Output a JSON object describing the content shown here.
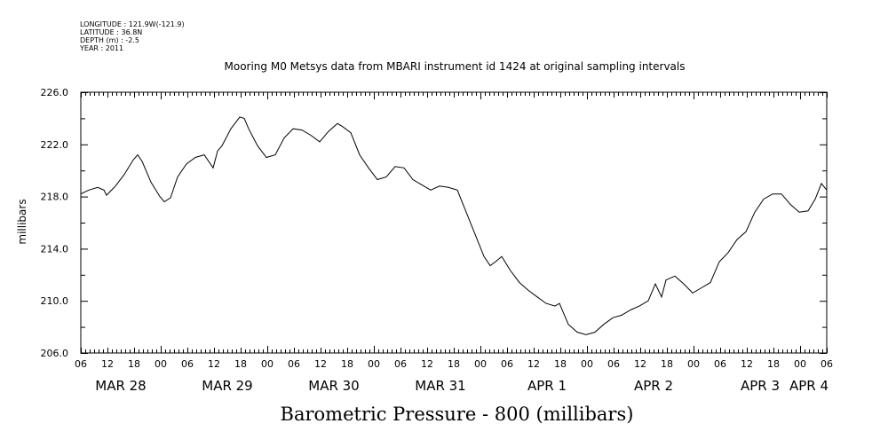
{
  "header": {
    "longitude": "LONGITUDE : 121.9W(-121.9)",
    "latitude": "LATITUDE : 36.8N",
    "depth": "DEPTH (m) : -2.5",
    "year": "YEAR : 2011"
  },
  "chart_data": {
    "type": "line",
    "title": "Mooring M0 Metsys data from MBARI instrument id 1424 at original sampling intervals",
    "xlabel": "Barometric Pressure - 800 (millibars)",
    "ylabel": "millibars",
    "ylim": [
      206,
      226
    ],
    "yticks": [
      "206.0",
      "210.0",
      "214.0",
      "218.0",
      "222.0",
      "226.0"
    ],
    "x_units": "hours since MAR 28 06:00",
    "xlim": [
      0,
      168
    ],
    "x_hour_labels": [
      "06",
      "12",
      "18",
      "00",
      "06",
      "12",
      "18",
      "00",
      "06",
      "12",
      "18",
      "00",
      "06",
      "12",
      "18",
      "00",
      "06",
      "12",
      "18",
      "00",
      "06",
      "12",
      "18",
      "00",
      "06",
      "12",
      "18",
      "00",
      "06"
    ],
    "date_labels": [
      "MAR 28",
      "MAR 29",
      "MAR 30",
      "MAR 31",
      "APR  1",
      "APR  2",
      "APR  3",
      "APR  4"
    ],
    "x": [
      0,
      1.8,
      3.8,
      5.2,
      5.8,
      7.8,
      9.8,
      11.8,
      12.8,
      13.8,
      15.8,
      17.8,
      18.8,
      20.2,
      21.8,
      23.8,
      25.8,
      27.8,
      29.8,
      30.8,
      31.8,
      33.8,
      35.8,
      36.8,
      37.8,
      39.8,
      41.8,
      43.8,
      45.8,
      47.8,
      49.8,
      51.8,
      53.8,
      55.8,
      57.8,
      58.8,
      60.8,
      62.8,
      64.8,
      66.8,
      68.8,
      70.8,
      72.8,
      74.8,
      76.8,
      78.8,
      80.8,
      82.8,
      84.8,
      86.8,
      88.8,
      90.8,
      92.2,
      93.4,
      94.8,
      96.8,
      98.8,
      100.8,
      102.8,
      104.8,
      106.8,
      107.8,
      109.8,
      111.8,
      113.8,
      115.8,
      117.8,
      119.8,
      121.8,
      123.8,
      125.8,
      127.8,
      129.4,
      130.8,
      131.8,
      133.8,
      135.8,
      137.8,
      139.8,
      141.8,
      143.8,
      145.8,
      147.8,
      149.8,
      151.8,
      153.8,
      155.8,
      157.8,
      159.8,
      161.8,
      163.8,
      165.4,
      166.8,
      168
    ],
    "y": [
      218.2,
      218.5,
      218.7,
      218.5,
      218.1,
      218.8,
      219.7,
      220.8,
      221.2,
      220.7,
      219.1,
      218.0,
      217.6,
      217.9,
      219.5,
      220.5,
      221.0,
      221.2,
      220.2,
      221.5,
      221.9,
      223.2,
      224.1,
      224.0,
      223.2,
      221.9,
      221.0,
      221.2,
      222.5,
      223.2,
      223.1,
      222.7,
      222.2,
      223.0,
      223.6,
      223.4,
      222.9,
      221.2,
      220.2,
      219.3,
      219.5,
      220.3,
      220.2,
      219.3,
      218.9,
      218.5,
      218.8,
      218.7,
      218.5,
      216.8,
      215.1,
      213.4,
      212.7,
      213.0,
      213.4,
      212.3,
      211.4,
      210.8,
      210.3,
      209.8,
      209.6,
      209.8,
      208.2,
      207.6,
      207.4,
      207.6,
      208.2,
      208.7,
      208.9,
      209.3,
      209.6,
      210.0,
      211.3,
      210.3,
      211.6,
      211.9,
      211.3,
      210.6,
      211.0,
      211.4,
      213.0,
      213.7,
      214.7,
      215.3,
      216.8,
      217.8,
      218.2,
      218.2,
      217.4,
      216.8,
      216.9,
      217.8,
      219.0,
      218.5
    ],
    "grid": false,
    "line_color": "#000000"
  }
}
